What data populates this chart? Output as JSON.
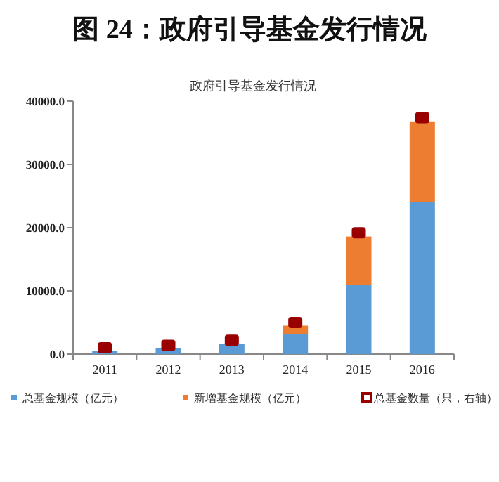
{
  "chart_data": {
    "type": "bar",
    "title": "图 24：政府引导基金发行情况",
    "subtitle": "政府引导基金发行情况",
    "stacked": true,
    "legend": "bottom",
    "categories": [
      "2011",
      "2012",
      "2013",
      "2014",
      "2015",
      "2016"
    ],
    "ylim": [
      0,
      40000
    ],
    "yticks": [
      {
        "value": 0,
        "label": "0.0"
      },
      {
        "value": 10000,
        "label": "10000.0"
      },
      {
        "value": 20000,
        "label": "20000.0"
      },
      {
        "value": 30000,
        "label": "30000.0"
      },
      {
        "value": 40000,
        "label": "40000.0"
      }
    ],
    "series": [
      {
        "name": "总基金规模（亿元）",
        "color": "#5b9bd5",
        "values": [
          500,
          1000,
          1600,
          3200,
          11000,
          24000
        ]
      },
      {
        "name": "新增基金规模（亿元）",
        "color": "#ed7d31",
        "values": [
          null,
          null,
          null,
          1300,
          7600,
          12800
        ]
      },
      {
        "name": "总基金数量（只，右轴）",
        "color": "#990000",
        "type": "scatter",
        "marker": "square",
        "values": [
          1000,
          1400,
          2200,
          5000,
          19200,
          37400
        ]
      }
    ]
  }
}
